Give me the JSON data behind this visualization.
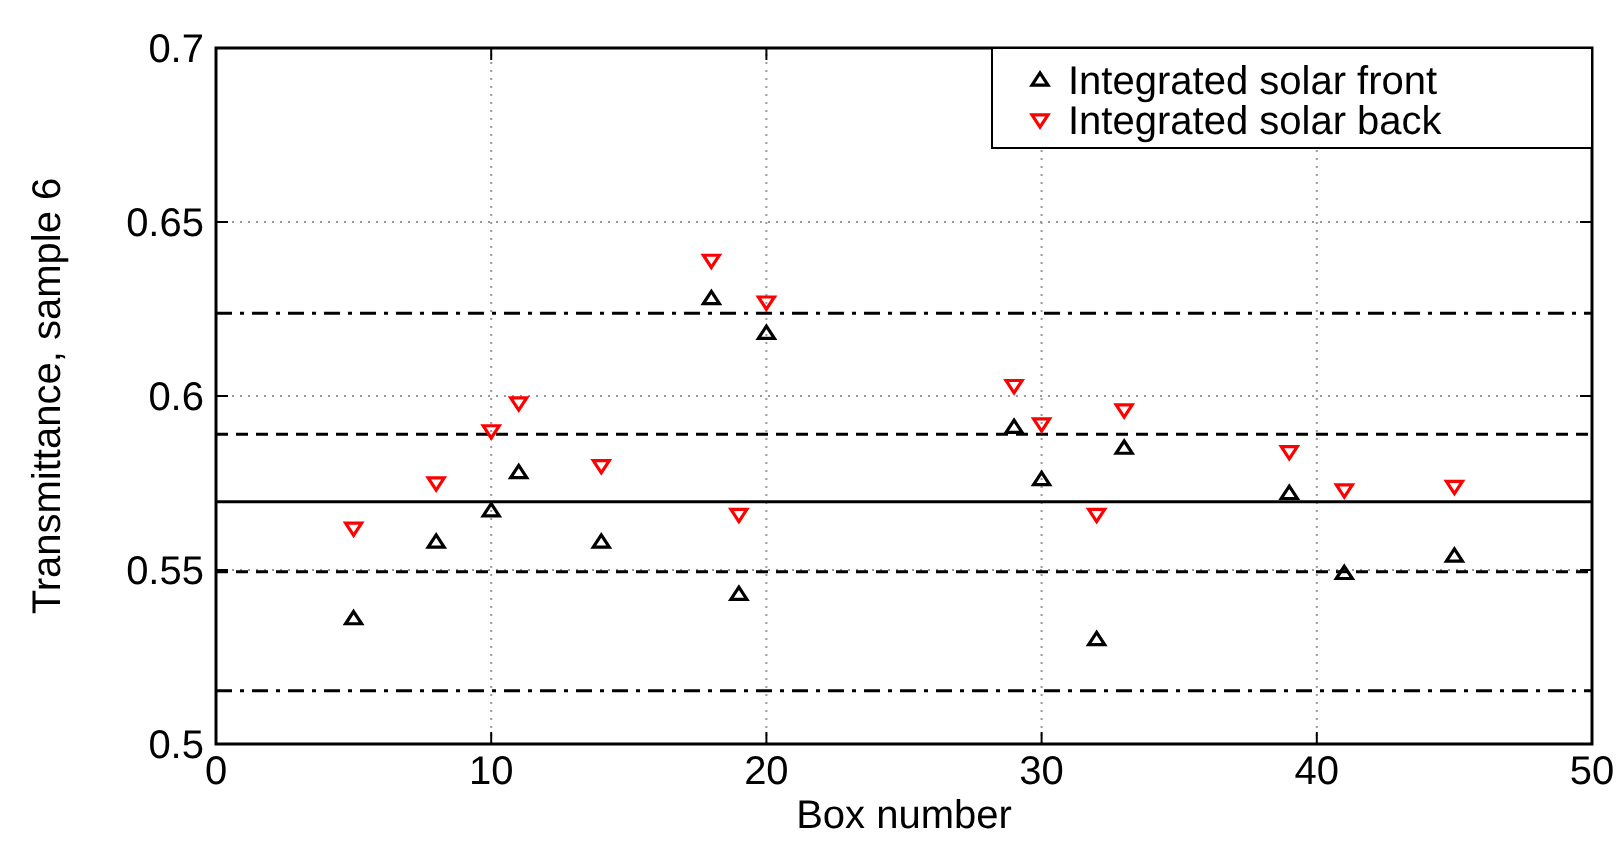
{
  "chart_data": {
    "type": "scatter",
    "xlabel": "Box number",
    "ylabel": "Transmittance, sample 6",
    "x": [
      5,
      8,
      10,
      11,
      14,
      18,
      19,
      20,
      29,
      30,
      32,
      33,
      39,
      41,
      45
    ],
    "series": [
      {
        "name": "Integrated solar front",
        "color": "#000000",
        "marker": "triangle",
        "values": [
          0.536,
          0.558,
          0.567,
          0.578,
          0.558,
          0.628,
          0.543,
          0.618,
          0.591,
          0.576,
          0.53,
          0.585,
          0.572,
          0.549,
          0.554
        ]
      },
      {
        "name": "Integrated solar back",
        "color": "#ff0000",
        "marker": "triangle-down",
        "values": [
          0.562,
          0.575,
          0.59,
          0.598,
          0.58,
          0.639,
          0.566,
          0.627,
          0.603,
          0.592,
          0.566,
          0.596,
          0.584,
          0.573,
          0.574
        ]
      }
    ],
    "xlim": [
      0,
      50
    ],
    "xticks": [
      0,
      10,
      20,
      30,
      40,
      50
    ],
    "ylim": [
      0.5,
      0.7
    ],
    "yticks": [
      0.5,
      0.55,
      0.6,
      0.65,
      0.7
    ],
    "ref_lines": [
      {
        "axis": "y",
        "value": 0.5696,
        "color": "#000000",
        "line_style": "solid"
      },
      {
        "axis": "y",
        "value": 0.589,
        "color": "#000000",
        "line_style": "dashed"
      },
      {
        "axis": "y",
        "value": 0.5495,
        "color": "#000000",
        "line_style": "dashed"
      },
      {
        "axis": "y",
        "value": 0.6238,
        "color": "#000000",
        "line_style": "dashdot"
      },
      {
        "axis": "y",
        "value": 0.5153,
        "color": "#000000",
        "line_style": "dashdot"
      }
    ],
    "grid": true,
    "legend": "top right"
  }
}
